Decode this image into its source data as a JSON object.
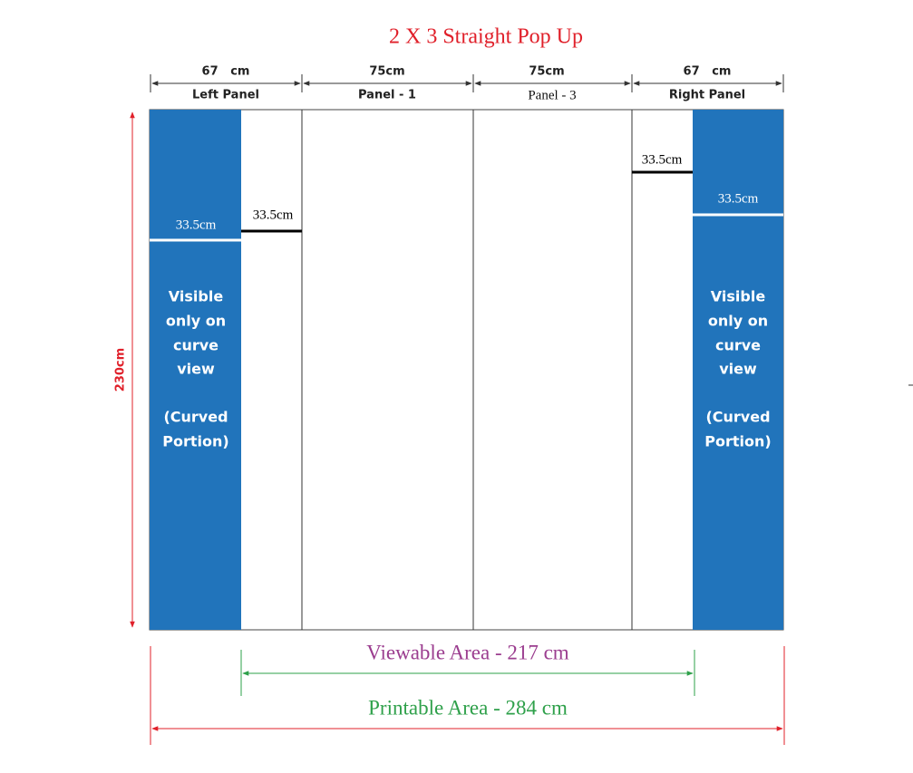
{
  "title": "2 X 3 Straight Pop Up",
  "panels": [
    {
      "width": "67   cm",
      "label": "Left Panel"
    },
    {
      "width": "75cm",
      "label": "Panel - 1"
    },
    {
      "width": "75cm",
      "label": "Panel - 3"
    },
    {
      "width": "67   cm",
      "label": "Right Panel"
    }
  ],
  "height": "230cm",
  "left_panel": {
    "blue_measure": "33.5cm",
    "white_measure": "33.5cm"
  },
  "right_panel": {
    "white_measure": "33.5cm",
    "blue_measure": "33.5cm"
  },
  "curved_note": {
    "lines": [
      "Visible",
      "only on",
      "curve",
      "view",
      "(Curved",
      "Portion)"
    ]
  },
  "viewable_area": "Viewable Area - 217 cm",
  "printable_area": "Printable Area - 284 cm"
}
